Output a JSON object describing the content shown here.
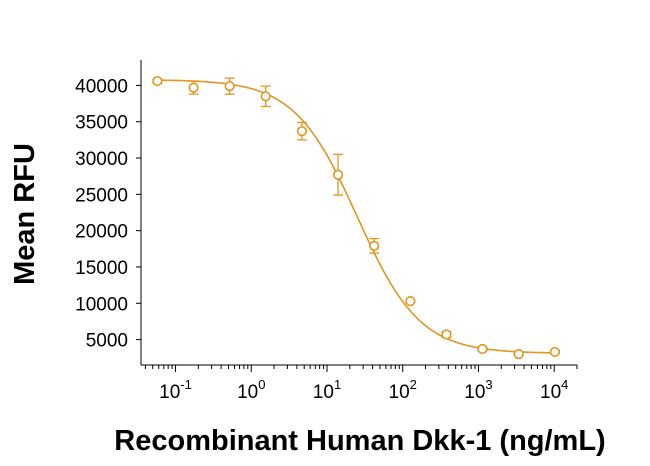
{
  "chart_data": {
    "type": "scatter",
    "title": "",
    "xlabel": "Recombinant Human Dkk-1 (ng/mL)",
    "ylabel": "Mean RFU",
    "x_scale": "log",
    "x_ticks": [
      {
        "value": 0.1,
        "base": "10",
        "exp": "-1"
      },
      {
        "value": 1,
        "base": "10",
        "exp": "0"
      },
      {
        "value": 10,
        "base": "10",
        "exp": "1"
      },
      {
        "value": 100,
        "base": "10",
        "exp": "2"
      },
      {
        "value": 1000,
        "base": "10",
        "exp": "3"
      },
      {
        "value": 10000,
        "base": "10",
        "exp": "4"
      }
    ],
    "y_ticks": [
      5000,
      10000,
      15000,
      20000,
      25000,
      30000,
      35000,
      40000
    ],
    "xlim": [
      0.035,
      20000
    ],
    "ylim": [
      1500,
      43500
    ],
    "grid": false,
    "color": "#e0961f",
    "series": [
      {
        "points": [
          {
            "x": 0.0576,
            "y": 40600,
            "err": 300
          },
          {
            "x": 0.173,
            "y": 39700,
            "err": 900
          },
          {
            "x": 0.518,
            "y": 39900,
            "err": 1100
          },
          {
            "x": 1.55,
            "y": 38500,
            "err": 1400
          },
          {
            "x": 4.67,
            "y": 33700,
            "err": 1200
          },
          {
            "x": 14.0,
            "y": 27700,
            "err": 2800
          },
          {
            "x": 42.0,
            "y": 17900,
            "err": 1000
          },
          {
            "x": 126,
            "y": 10300,
            "err": 200
          },
          {
            "x": 378,
            "y": 5700,
            "err": 400
          },
          {
            "x": 1130,
            "y": 3700,
            "err": 250
          },
          {
            "x": 3400,
            "y": 3000,
            "err": 200
          },
          {
            "x": 10200,
            "y": 3300,
            "err": 150
          }
        ]
      }
    ],
    "fit": {
      "model": "4PL",
      "top": 40800,
      "bottom": 3100,
      "ec50": 25,
      "hill": 1.05
    }
  }
}
